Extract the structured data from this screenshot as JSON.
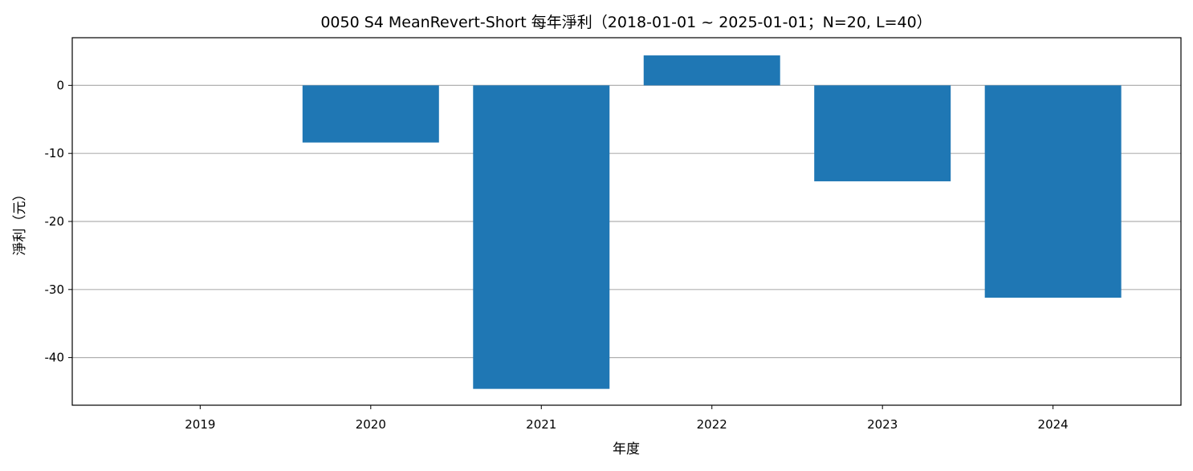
{
  "chart_data": {
    "type": "bar",
    "title": "0050 S4 MeanRevert-Short 每年淨利（2018-01-01 ~ 2025-01-01；N=20, L=40）",
    "xlabel": "年度",
    "ylabel": "淨利（元）",
    "categories": [
      "2019",
      "2020",
      "2021",
      "2022",
      "2023",
      "2024"
    ],
    "values": [
      0,
      -8.4,
      -44.6,
      4.4,
      -14.1,
      -31.2
    ],
    "ylim": [
      -47,
      7
    ],
    "yticks": [
      0,
      -10,
      -20,
      -30,
      -40
    ],
    "ytick_labels": [
      "0",
      "-10",
      "-20",
      "-30",
      "-40"
    ],
    "grid": "y",
    "bar_color": "#1f77b4",
    "grid_color": "#b0b0b0"
  }
}
